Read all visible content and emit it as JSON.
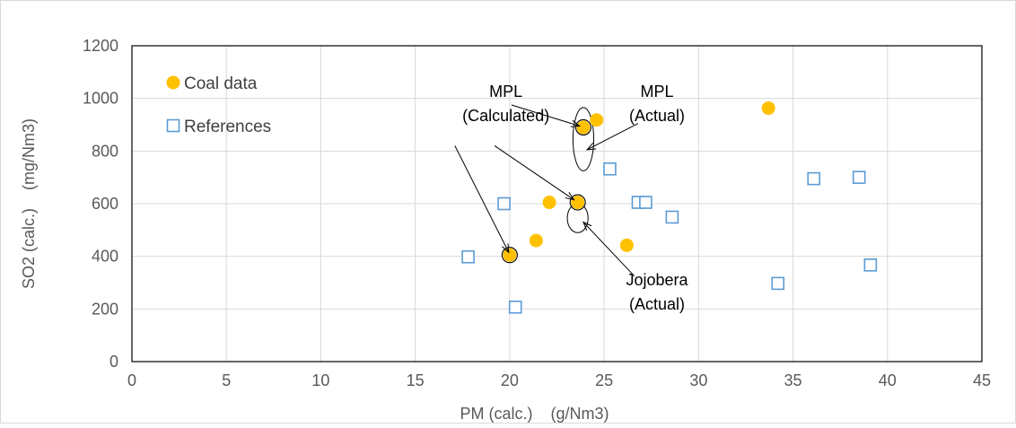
{
  "chart_data": {
    "type": "scatter",
    "xlabel": "PM (calc.)    (g/Nm3)",
    "ylabel": "SO2 (calc.)    (mg/Nm3)",
    "xlim": [
      0,
      45
    ],
    "ylim": [
      0,
      1200
    ],
    "xticks": [
      0,
      5,
      10,
      15,
      20,
      25,
      30,
      35,
      40,
      45
    ],
    "yticks": [
      0,
      200,
      400,
      600,
      800,
      1000,
      1200
    ],
    "grid": true,
    "legend_position": "top-left",
    "series": [
      {
        "name": "Coal data",
        "marker": "filled-circle",
        "color": "#FFC000",
        "points": [
          {
            "x": 20.0,
            "y": 405
          },
          {
            "x": 21.4,
            "y": 460
          },
          {
            "x": 22.1,
            "y": 605
          },
          {
            "x": 23.6,
            "y": 605
          },
          {
            "x": 23.9,
            "y": 890
          },
          {
            "x": 24.6,
            "y": 918
          },
          {
            "x": 26.2,
            "y": 442
          },
          {
            "x": 33.7,
            "y": 963
          }
        ]
      },
      {
        "name": "References",
        "marker": "open-square",
        "color": "#5B9BD5",
        "points": [
          {
            "x": 17.8,
            "y": 398
          },
          {
            "x": 19.7,
            "y": 600
          },
          {
            "x": 20.3,
            "y": 207
          },
          {
            "x": 25.3,
            "y": 732
          },
          {
            "x": 26.8,
            "y": 605
          },
          {
            "x": 27.2,
            "y": 605
          },
          {
            "x": 28.6,
            "y": 549
          },
          {
            "x": 34.2,
            "y": 297
          },
          {
            "x": 36.1,
            "y": 695
          },
          {
            "x": 38.5,
            "y": 700
          },
          {
            "x": 39.1,
            "y": 367
          }
        ]
      }
    ],
    "highlight_circles": [
      {
        "x": 20.0,
        "y": 405
      },
      {
        "x": 23.6,
        "y": 605
      },
      {
        "x": 23.9,
        "y": 890
      }
    ],
    "ellipses": [
      {
        "cx": 23.9,
        "cy": 845,
        "rx": 0.55,
        "ry": 120
      },
      {
        "cx": 23.6,
        "cy": 545,
        "rx": 0.55,
        "ry": 55
      }
    ],
    "annotations": [
      {
        "lines": [
          "MPL",
          "(Calculated)"
        ],
        "text_x": 19.8,
        "text_y": 1005,
        "align": "middle",
        "arrows": [
          {
            "from": [
              20.1,
              975
            ],
            "to": [
              23.7,
              895
            ]
          },
          {
            "from": [
              19.2,
              820
            ],
            "to": [
              23.4,
              615
            ]
          },
          {
            "from": [
              17.1,
              820
            ],
            "to": [
              19.95,
              415
            ]
          }
        ]
      },
      {
        "lines": [
          "MPL",
          "(Actual)"
        ],
        "text_x": 27.8,
        "text_y": 1005,
        "align": "middle",
        "arrows": [
          {
            "from": [
              26.8,
              905
            ],
            "to": [
              24.1,
              805
            ]
          }
        ]
      },
      {
        "lines": [
          "Jojobera",
          "(Actual)"
        ],
        "text_x": 27.8,
        "text_y": 290,
        "align": "middle",
        "arrows": [
          {
            "from": [
              26.6,
              325
            ],
            "to": [
              23.9,
              530
            ]
          }
        ]
      }
    ]
  }
}
